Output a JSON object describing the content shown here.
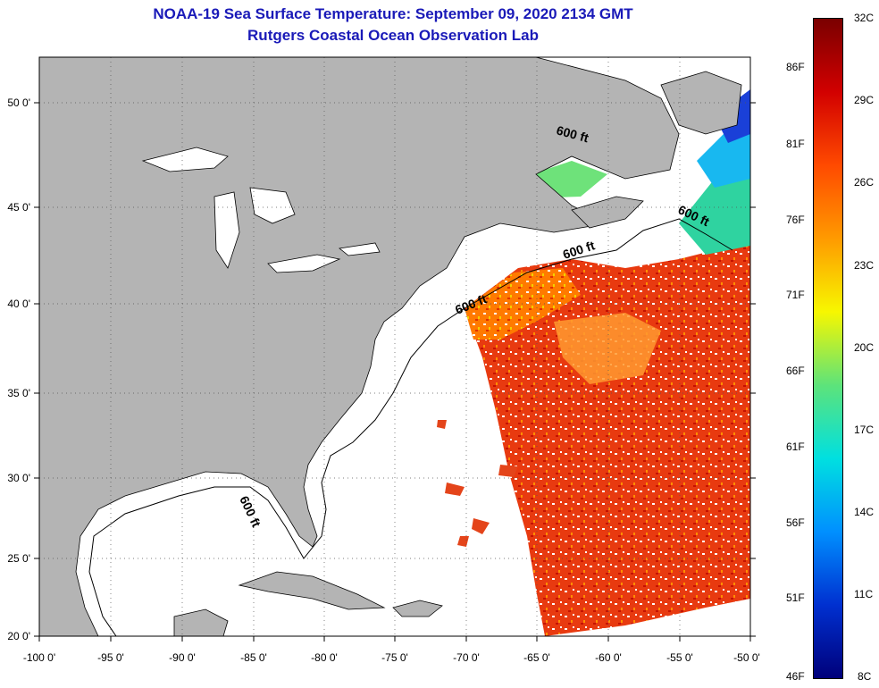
{
  "title": {
    "line1": "NOAA-19 Sea Surface Temperature:  September 09, 2020 2134 GMT",
    "line2": "Rutgers Coastal Ocean Observation Lab"
  },
  "map": {
    "lon_ticks": [
      "-100 0'",
      "-95 0'",
      "-90 0'",
      "-85 0'",
      "-80 0'",
      "-75 0'",
      "-70 0'",
      "-65 0'",
      "-60 0'",
      "-55 0'",
      "-50 0'"
    ],
    "lat_ticks": [
      "20 0'",
      "25 0'",
      "30 0'",
      "35 0'",
      "40 0'",
      "45 0'",
      "50 0'"
    ],
    "contour_label": "600 ft",
    "colors": {
      "land": "#b4b4b4",
      "ocean_nodata": "#ffffff",
      "grid": "#555555"
    }
  },
  "colorbar": {
    "celsius_labels": [
      "32C",
      "29C",
      "26C",
      "23C",
      "20C",
      "17C",
      "14C",
      "11C",
      "8C"
    ],
    "fahrenheit_labels": [
      "86F",
      "81F",
      "76F",
      "71F",
      "66F",
      "61F",
      "56F",
      "51F",
      "46F"
    ],
    "gradient": [
      "#7a0000",
      "#d20000",
      "#ff4a00",
      "#ff9a00",
      "#f7f700",
      "#5de37a",
      "#00e0e0",
      "#0090ff",
      "#0030d0",
      "#00007a"
    ]
  }
}
